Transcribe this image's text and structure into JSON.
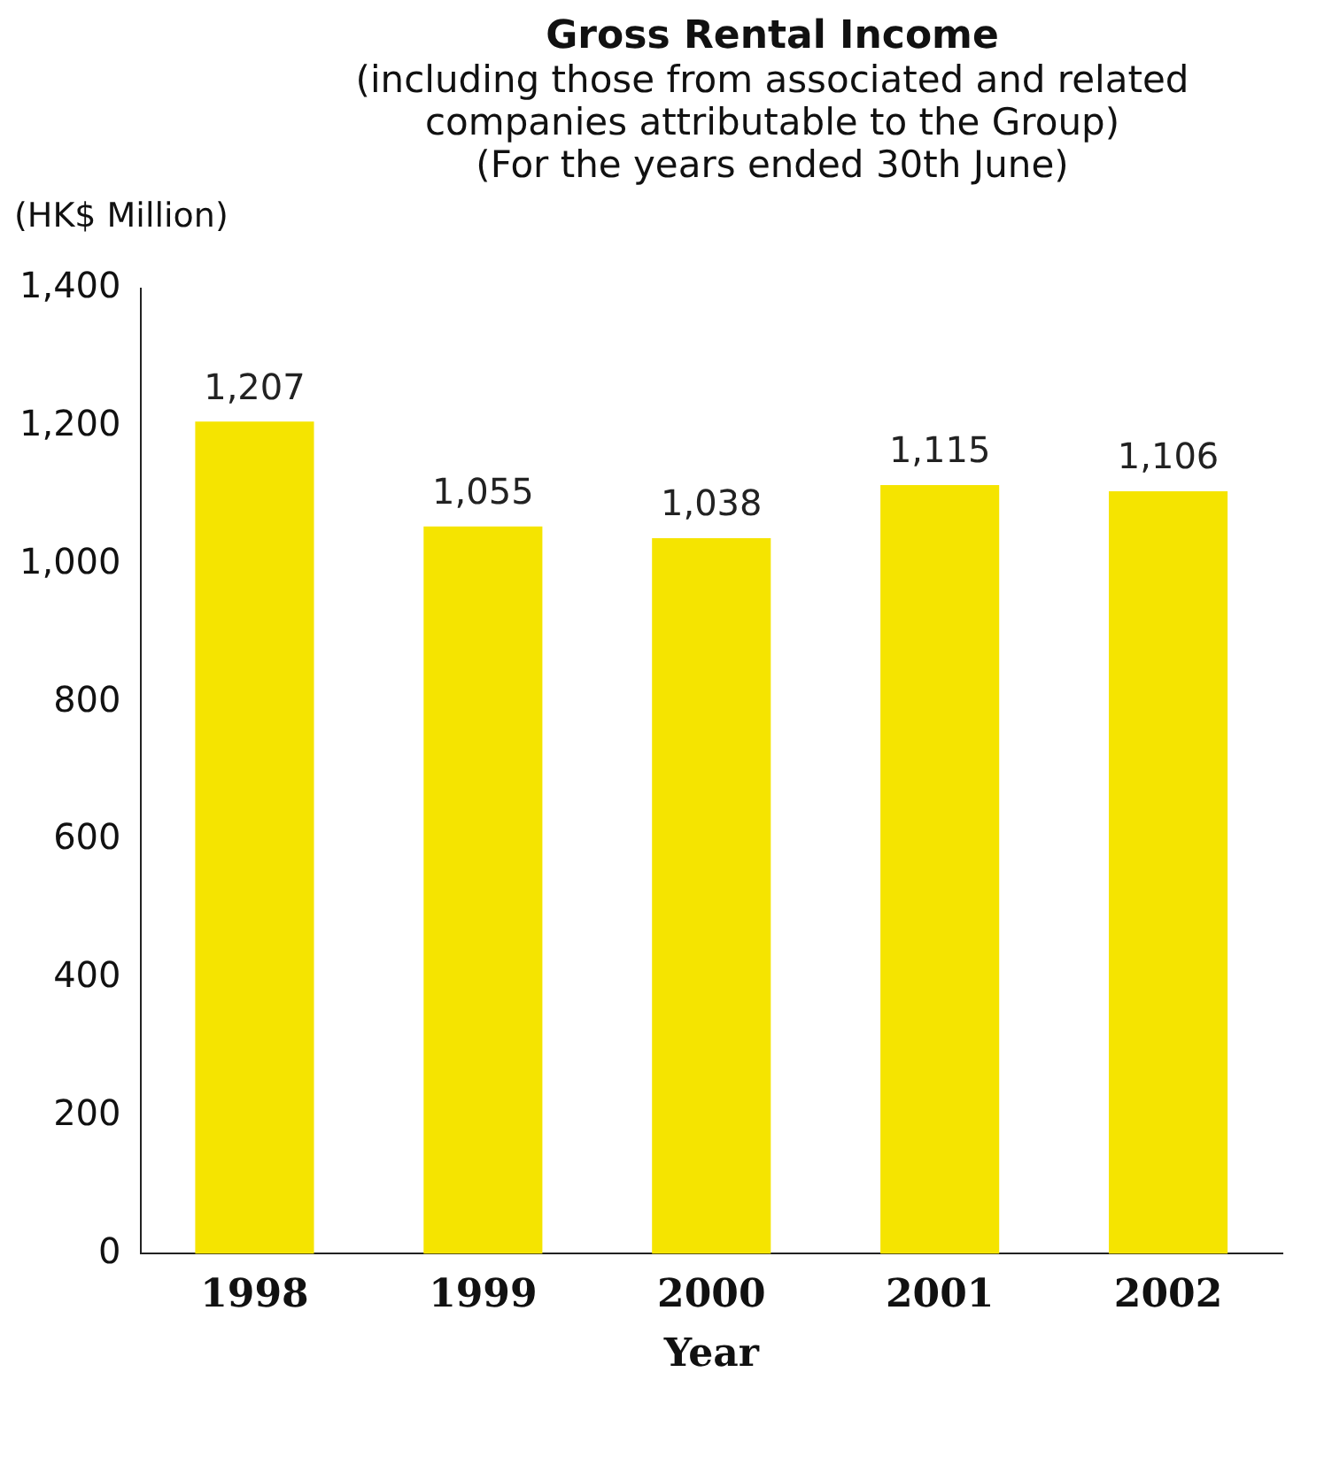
{
  "chart_data": {
    "type": "bar",
    "title": "Gross Rental Income",
    "subtitle": "(including those from associated and related\ncompanies attributable to the Group)\n(For the years ended 30th June)",
    "ylabel": "(HK$ Million)",
    "xlabel": "Year",
    "categories": [
      "1998",
      "1999",
      "2000",
      "2001",
      "2002"
    ],
    "values": [
      1207,
      1055,
      1038,
      1115,
      1106
    ],
    "color": "#f5e400",
    "ylim": [
      0,
      1400
    ],
    "yticks": [
      {
        "value": 0,
        "label": "0"
      },
      {
        "value": 200,
        "label": "200"
      },
      {
        "value": 400,
        "label": "400"
      },
      {
        "value": 600,
        "label": "600"
      },
      {
        "value": 800,
        "label": "800"
      },
      {
        "value": 1000,
        "label": "1,000"
      },
      {
        "value": 1200,
        "label": "1,200"
      },
      {
        "value": 1400,
        "label": "1,400"
      }
    ],
    "value_labels": [
      "1,207",
      "1,055",
      "1,038",
      "1,115",
      "1,106"
    ],
    "grid": false,
    "legend": false
  }
}
